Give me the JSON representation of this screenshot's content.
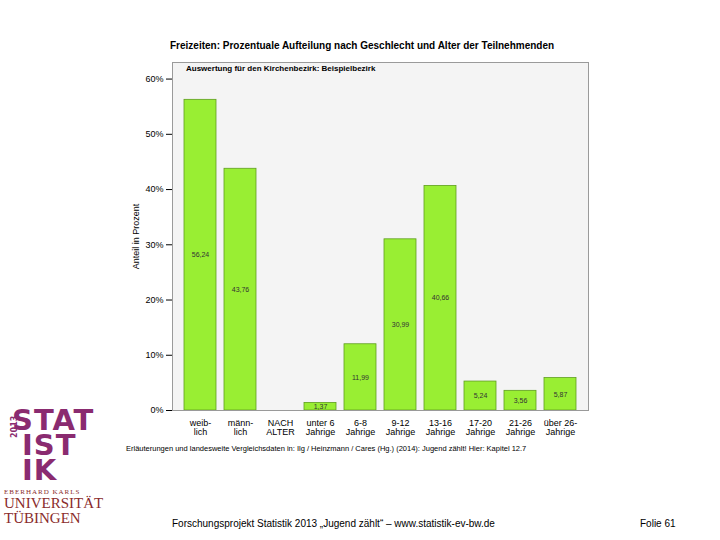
{
  "chart_data": {
    "type": "bar",
    "title": "Freizeiten: Prozentuale Aufteilung nach Geschlecht und Alter der Teilnehmenden",
    "subtitle": "Auswertung für den Kirchenbezirk: Beispielbezirk",
    "y_label": "Anteil in Prozent",
    "note": "Erläuterungen und landesweite Vergleichsdaten in: Ilg / Heinzmann / Cares (Hg.) (2014): Jugend zählt! Hier: Kapitel 12.7",
    "categories": [
      "weib-\nlich",
      "männ-\nlich",
      "NACH\nALTER",
      "unter 6\nJahrige",
      "6-8\nJahrige",
      "9-12\nJahrige",
      "13-16\nJahrige",
      "17-20\nJahrige",
      "21-26\nJahrige",
      "über 26-\nJahrige"
    ],
    "values": [
      56.24,
      43.76,
      null,
      1.37,
      11.99,
      30.99,
      40.66,
      5.24,
      3.56,
      5.87
    ],
    "value_labels": [
      "56,24",
      "43,76",
      null,
      "1,37",
      "11,99",
      "30,99",
      "40,66",
      "5,24",
      "3,56",
      "5,87"
    ],
    "data_labels": true,
    "color": "#99ee33",
    "ylim": [
      0,
      63
    ],
    "yticks": [
      {
        "value": 0,
        "label": "0%"
      },
      {
        "value": 10,
        "label": "10%"
      },
      {
        "value": 20,
        "label": "20%"
      },
      {
        "value": 30,
        "label": "30%"
      },
      {
        "value": 40,
        "label": "40%"
      },
      {
        "value": 50,
        "label": "50%"
      },
      {
        "value": 60,
        "label": "60%"
      }
    ],
    "grid": false
  },
  "logo": {
    "lines": [
      "STAT",
      "IST",
      "IK"
    ],
    "year": "2013",
    "university": [
      "EBERHARD KARLS",
      "UNIVERSITÄT",
      "TÜBINGEN"
    ]
  },
  "footer": {
    "text": "Forschungsprojekt Statistik 2013 „Jugend zählt“ – www.statistik-ev-bw.de",
    "slide": "Folie 61"
  }
}
